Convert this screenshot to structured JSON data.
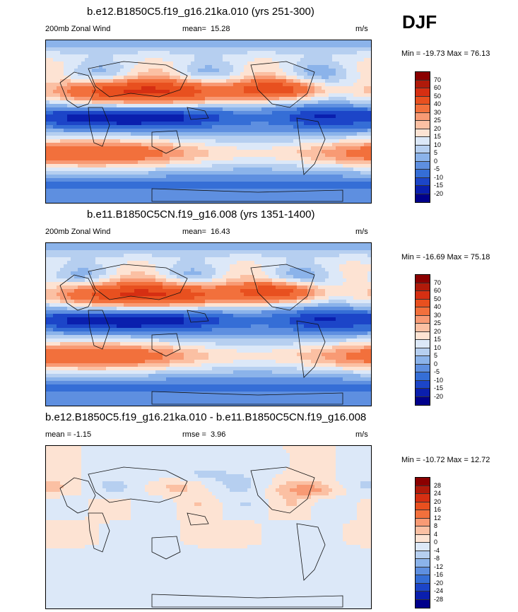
{
  "season": "DJF",
  "panels": [
    {
      "title": "b.e12.B1850C5.f19_g16.21ka.010 (yrs 251-300)",
      "left": "200mb Zonal Wind",
      "center_label": "mean=",
      "center_value": "15.28",
      "units": "m/s",
      "minmax": "Min = -19.73 Max = 76.13",
      "levels": [
        "70",
        "60",
        "50",
        "40",
        "30",
        "25",
        "20",
        "15",
        "10",
        "5",
        "0",
        "-5",
        "-10",
        "-15",
        "-20"
      ]
    },
    {
      "title": "b.e11.B1850C5CN.f19_g16.008 (yrs 1351-1400)",
      "left": "200mb Zonal Wind",
      "center_label": "mean=",
      "center_value": "16.43",
      "units": "m/s",
      "minmax": "Min = -16.69 Max = 75.18",
      "levels": [
        "70",
        "60",
        "50",
        "40",
        "30",
        "25",
        "20",
        "15",
        "10",
        "5",
        "0",
        "-5",
        "-10",
        "-15",
        "-20"
      ]
    },
    {
      "title": "b.e12.B1850C5.f19_g16.21ka.010 - b.e11.B1850C5CN.f19_g16.008",
      "left": "mean =  -1.15",
      "center_label": "rmse =",
      "center_value": "3.96",
      "units": "m/s",
      "minmax": "Min = -10.72 Max = 12.72",
      "levels": [
        "28",
        "24",
        "20",
        "16",
        "12",
        "8",
        "4",
        "0",
        "-4",
        "-8",
        "-12",
        "-16",
        "-20",
        "-24",
        "-28"
      ]
    }
  ],
  "palette": {
    "abs": [
      "#8b0000",
      "#b01a0a",
      "#d62f12",
      "#e8501f",
      "#f2703c",
      "#f89a74",
      "#fbc0a3",
      "#fde3d3",
      "#dce8f8",
      "#b6cff0",
      "#8bb3ea",
      "#5e8fe0",
      "#356ed6",
      "#1c45c8",
      "#0a1fae",
      "#00008b"
    ],
    "diff": [
      "#8b0000",
      "#b01a0a",
      "#d62f12",
      "#e8501f",
      "#f2703c",
      "#f89a74",
      "#fbc0a3",
      "#fde3d3",
      "#dce8f8",
      "#b6cff0",
      "#8bb3ea",
      "#5e8fe0",
      "#356ed6",
      "#1c45c8",
      "#0a1fae",
      "#00008b"
    ]
  },
  "chart_data": [
    {
      "type": "heatmap",
      "title": "b.e12.B1850C5.f19_g16.21ka.010 (yrs 251-300)",
      "variable": "200mb Zonal Wind",
      "units": "m/s",
      "mean": 15.28,
      "min": -19.73,
      "max": 76.13,
      "contour_levels": [
        -20,
        -15,
        -10,
        -5,
        0,
        5,
        10,
        15,
        20,
        25,
        30,
        40,
        50,
        60,
        70
      ]
    },
    {
      "type": "heatmap",
      "title": "b.e11.B1850C5CN.f19_g16.008 (yrs 1351-1400)",
      "variable": "200mb Zonal Wind",
      "units": "m/s",
      "mean": 16.43,
      "min": -16.69,
      "max": 75.18,
      "contour_levels": [
        -20,
        -15,
        -10,
        -5,
        0,
        5,
        10,
        15,
        20,
        25,
        30,
        40,
        50,
        60,
        70
      ]
    },
    {
      "type": "heatmap",
      "title": "b.e12.B1850C5.f19_g16.21ka.010 - b.e11.B1850C5CN.f19_g16.008",
      "units": "m/s",
      "mean": -1.15,
      "rmse": 3.96,
      "min": -10.72,
      "max": 12.72,
      "contour_levels": [
        -28,
        -24,
        -20,
        -16,
        -12,
        -8,
        -4,
        0,
        4,
        8,
        12,
        16,
        20,
        24,
        28
      ]
    }
  ]
}
